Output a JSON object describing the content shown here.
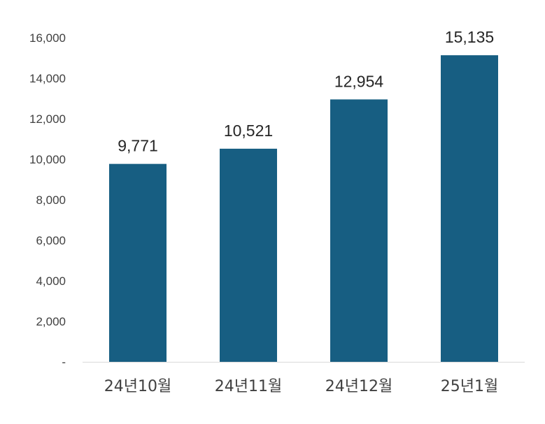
{
  "chart_data": {
    "type": "bar",
    "categories": [
      "24년10월",
      "24년11월",
      "24년12월",
      "25년1월"
    ],
    "values": [
      9771,
      10521,
      12954,
      15135
    ],
    "data_labels": [
      "9,771",
      "10,521",
      "12,954",
      "15,135"
    ],
    "y_ticks": [
      0,
      2000,
      4000,
      6000,
      8000,
      10000,
      12000,
      14000,
      16000
    ],
    "y_tick_labels": [
      "-",
      "2,000",
      "4,000",
      "6,000",
      "8,000",
      "10,000",
      "12,000",
      "14,000",
      "16,000"
    ],
    "ylim": [
      0,
      16000
    ],
    "grid": false,
    "legend": "none",
    "bar_color": "#175E82",
    "axis_color": "#D9D9D9"
  }
}
